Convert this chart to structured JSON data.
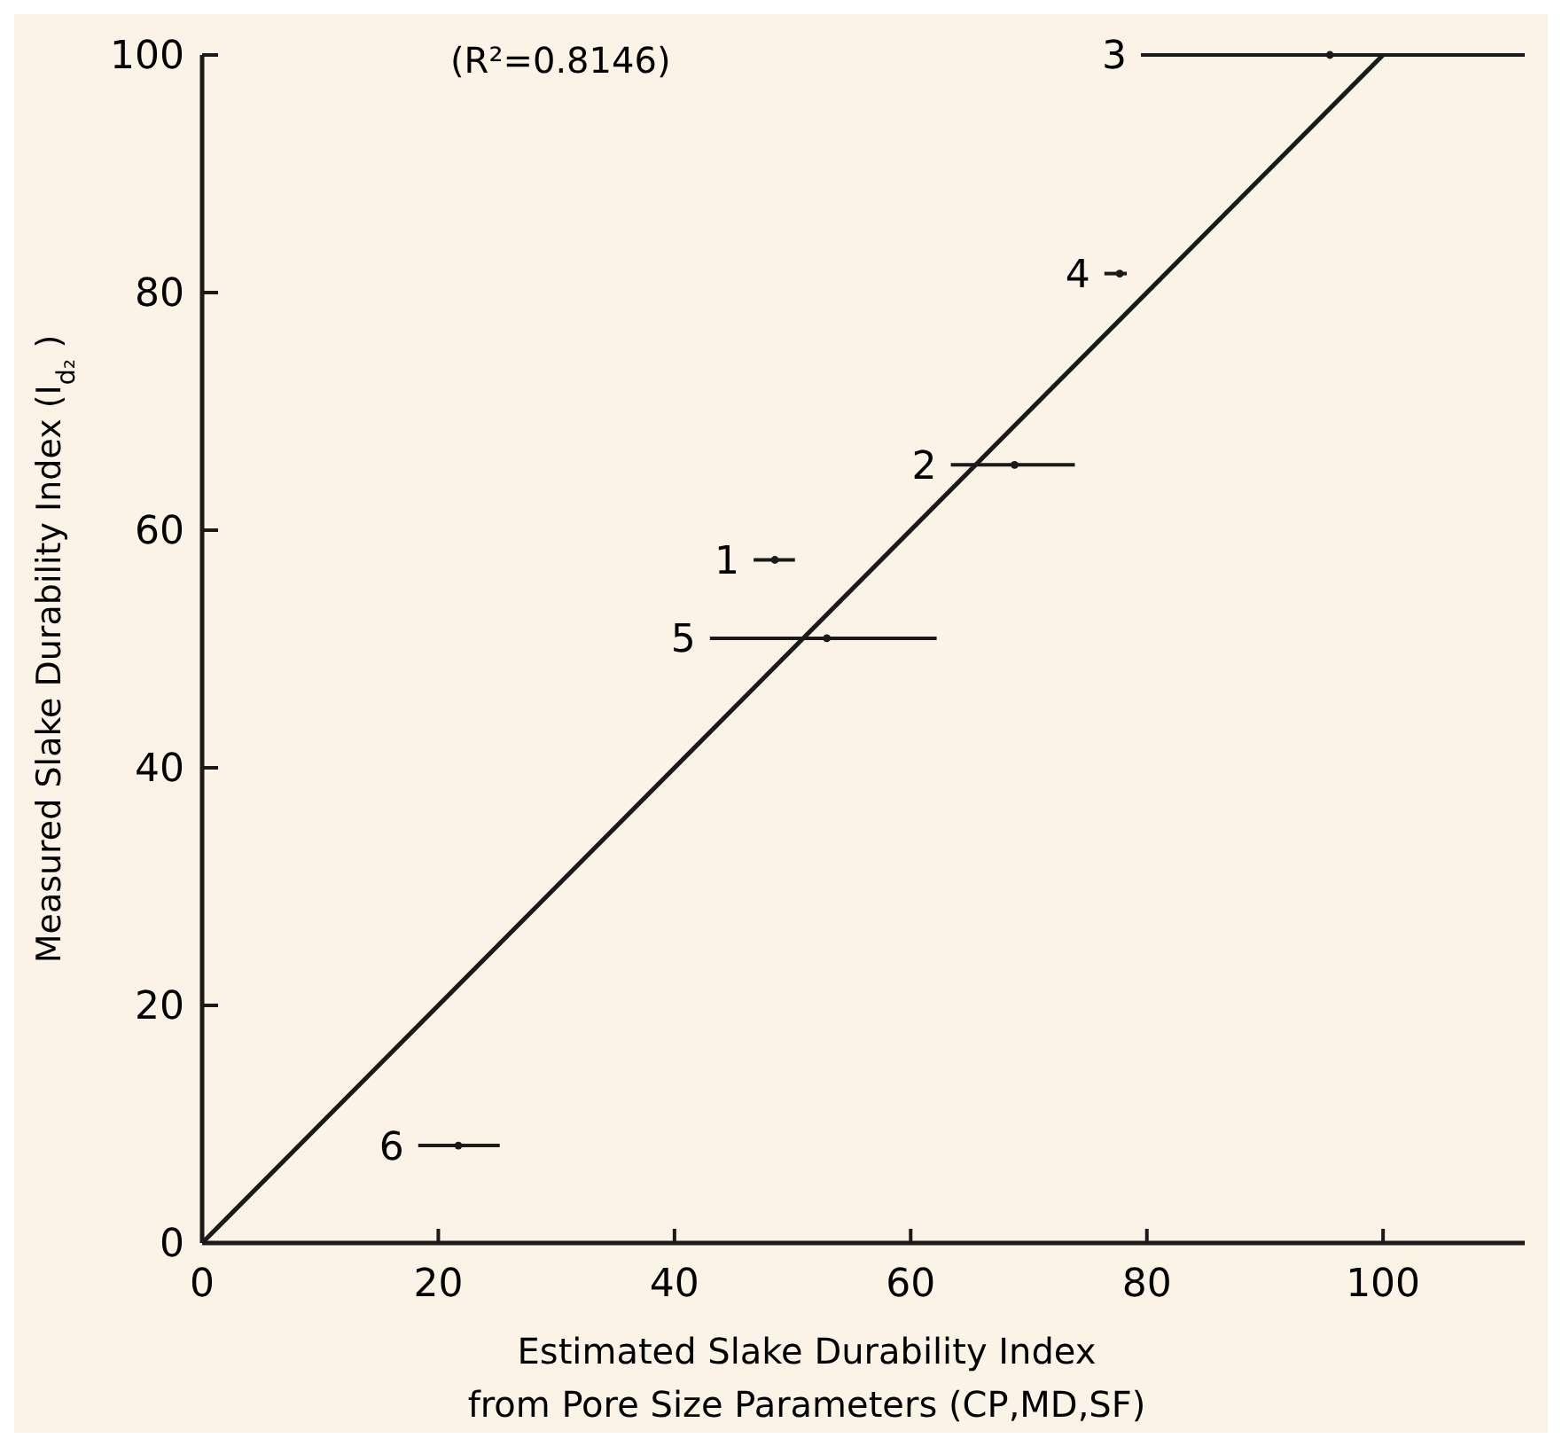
{
  "chart_data": {
    "type": "scatter",
    "xlabel": "Estimated Slake Durability Index\nfrom Pore Size Parameters (CP,MD,SF)",
    "ylabel": "Measured Slake Durability Index (I$_{d₂}$)",
    "xlim": [
      0,
      112
    ],
    "xticks": [
      0,
      20,
      40,
      60,
      80,
      100
    ],
    "ylim": [
      0,
      100
    ],
    "yticks": [
      0,
      20,
      40,
      60,
      80,
      100
    ],
    "grid": false,
    "marker": "circle",
    "series": [
      {
        "color": "#1a1a1a",
        "x": [
          48.5,
          68.8,
          95.5,
          77.7,
          52.9,
          21.7
        ],
        "values": [
          57.5,
          65.5,
          100,
          81.6,
          50.9,
          8.2
        ],
        "xerrors": [
          [
            46.7,
            50.2
          ],
          [
            63.4,
            73.9
          ],
          [
            79.5,
            112
          ],
          [
            76.4,
            78.3
          ],
          [
            43.0,
            62.2
          ],
          [
            18.3,
            25.2
          ]
        ]
      },
      {
        "type": "line",
        "color": "#1a1a1a",
        "x": [
          0,
          100
        ],
        "values": [
          0,
          100
        ],
        "marker": "none",
        "line_style": "solid"
      }
    ],
    "annotations": [
      "(R²=0.8146)",
      {
        "text": "1",
        "x": 46.7,
        "y": 57.5
      },
      {
        "text": "2",
        "x": 63.4,
        "y": 65.5
      },
      {
        "text": "3",
        "x": 79.5,
        "y": 100
      },
      {
        "text": "4",
        "x": 76.4,
        "y": 81.6
      },
      {
        "text": "5",
        "x": 43.0,
        "y": 50.9
      },
      {
        "text": "6",
        "x": 18.3,
        "y": 8.2
      }
    ]
  }
}
